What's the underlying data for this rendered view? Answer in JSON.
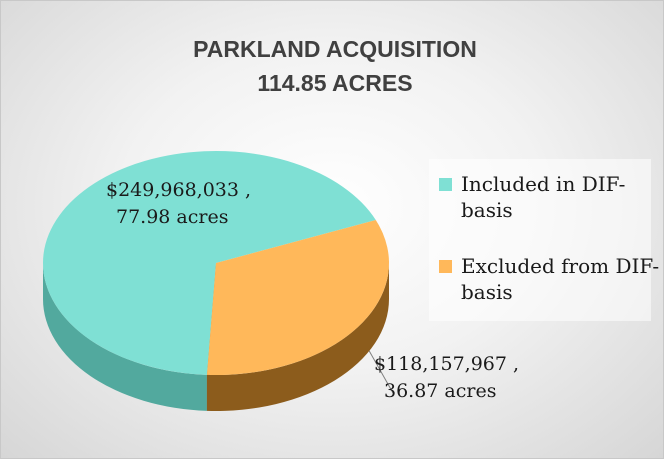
{
  "chart_data": {
    "type": "pie",
    "title": "PARKLAND ACQUISITION",
    "subtitle": "114.85 ACRES",
    "categories": [
      "Included in DIF-basis",
      "Excluded from DIF-basis"
    ],
    "values": [
      249968033,
      118157967
    ],
    "value_labels": [
      "$249,968,033 ,",
      "$118,157,967 ,"
    ],
    "acres_labels": [
      "77.98 acres",
      "36.87 acres"
    ],
    "colors": [
      "#7fe0d4",
      "#ffb85a"
    ],
    "side_colors": [
      "#52a99e",
      "#8c5c1c"
    ],
    "legend": "right"
  }
}
